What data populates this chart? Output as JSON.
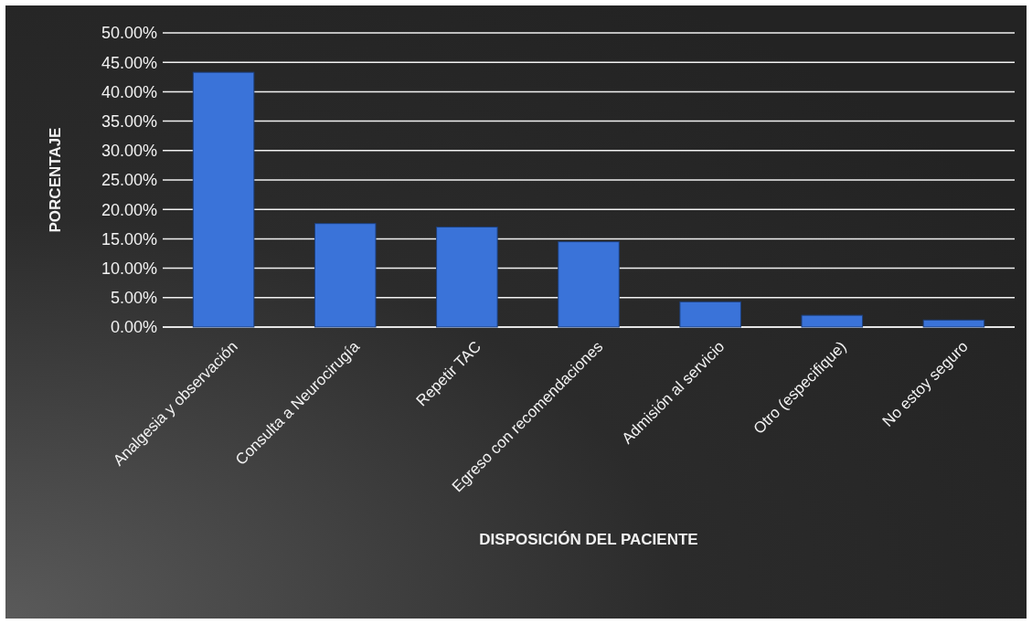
{
  "chart_data": {
    "type": "bar",
    "xlabel": "DISPOSICIÓN DEL PACIENTE",
    "ylabel": "PORCENTAJE",
    "categories": [
      "Analgesia y observación",
      "Consulta a  Neurocirugía",
      "Repetir TAC",
      "Egreso con recomendaciones",
      "Admisión al servicio",
      "Otro (especifique)",
      "No estoy seguro"
    ],
    "values": [
      43.3,
      17.6,
      17.0,
      14.5,
      4.3,
      2.0,
      1.2
    ],
    "color": "#3a73d9",
    "ylim": [
      0,
      50
    ],
    "yticks": [
      {
        "value": 0,
        "label": "0.00%"
      },
      {
        "value": 5,
        "label": "5.00%"
      },
      {
        "value": 10,
        "label": "10.00%"
      },
      {
        "value": 15,
        "label": "15.00%"
      },
      {
        "value": 20,
        "label": "20.00%"
      },
      {
        "value": 25,
        "label": "25.00%"
      },
      {
        "value": 30,
        "label": "30.00%"
      },
      {
        "value": 35,
        "label": "35.00%"
      },
      {
        "value": 40,
        "label": "40.00%"
      },
      {
        "value": 45,
        "label": "45.00%"
      },
      {
        "value": 50,
        "label": "50.00%"
      }
    ],
    "grid": "y"
  }
}
